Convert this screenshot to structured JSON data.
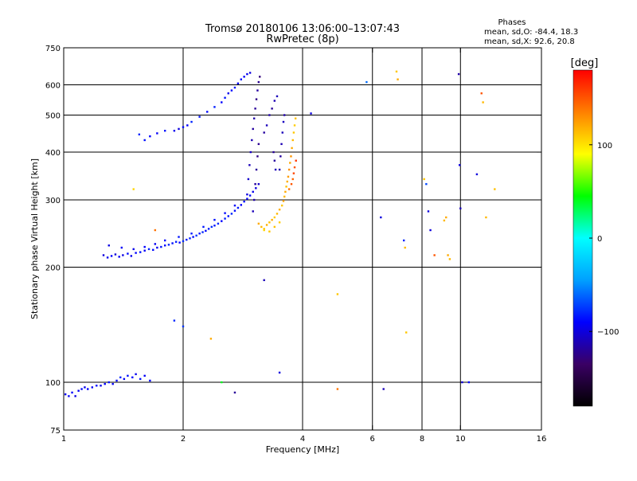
{
  "chart_data": {
    "type": "scatter",
    "title": "Tromsø 20180106 13:06:00–13:07:43",
    "subtitle": "RwPretec (8p)",
    "xlabel": "Frequency [MHz]",
    "ylabel": "Stationary phase Virtual Height [km]",
    "x_scale": "log",
    "y_scale": "log",
    "xlim": [
      1,
      16
    ],
    "ylim": [
      75,
      750
    ],
    "x_ticks": [
      {
        "value": 1,
        "label": "1"
      },
      {
        "value": 2,
        "label": "2"
      },
      {
        "value": 4,
        "label": "4"
      },
      {
        "value": 6,
        "label": "6"
      },
      {
        "value": 8,
        "label": "8"
      },
      {
        "value": 10,
        "label": "10"
      },
      {
        "value": 16,
        "label": "16"
      }
    ],
    "x_gridlines": [
      2,
      4,
      6,
      8,
      10
    ],
    "y_ticks": [
      {
        "value": 75,
        "label": "75"
      },
      {
        "value": 100,
        "label": "100"
      },
      {
        "value": 200,
        "label": "200"
      },
      {
        "value": 300,
        "label": "300"
      },
      {
        "value": 400,
        "label": "400"
      },
      {
        "value": 500,
        "label": "500"
      },
      {
        "value": 600,
        "label": "600"
      },
      {
        "value": 750,
        "label": "750"
      }
    ],
    "y_gridlines": [
      100,
      200,
      300,
      400,
      500,
      600
    ],
    "grid": true,
    "stats": {
      "heading": "Phases",
      "line_o": "mean, sd,O: -84.4, 18.3",
      "line_x": "mean, sd,X:  92.6, 20.8"
    },
    "colorbar": {
      "label": "[deg]",
      "range": [
        -180,
        180
      ],
      "ticks": [
        {
          "value": 100,
          "label": "100"
        },
        {
          "value": 0,
          "label": "0"
        },
        {
          "value": -100,
          "label": "−100"
        }
      ],
      "stops": [
        "#000000",
        "#3a0064",
        "#0000ff",
        "#00a0ff",
        "#00ffff",
        "#00ff00",
        "#ffff00",
        "#ff8000",
        "#ff0000"
      ]
    },
    "series": [
      {
        "points": [
          [
            1.01,
            93,
            -95
          ],
          [
            1.03,
            92,
            -92
          ],
          [
            1.05,
            94,
            -90
          ],
          [
            1.07,
            92,
            -98
          ],
          [
            1.09,
            95,
            -93
          ],
          [
            1.11,
            96,
            -88
          ],
          [
            1.13,
            97,
            -95
          ],
          [
            1.15,
            96,
            -90
          ],
          [
            1.18,
            97,
            -92
          ],
          [
            1.21,
            98,
            -87
          ],
          [
            1.24,
            98,
            -95
          ],
          [
            1.27,
            99,
            -90
          ],
          [
            1.3,
            100,
            -85
          ],
          [
            1.33,
            99,
            -93
          ],
          [
            1.36,
            101,
            -88
          ],
          [
            1.39,
            103,
            -80
          ],
          [
            1.42,
            102,
            -92
          ],
          [
            1.45,
            104,
            -86
          ],
          [
            1.49,
            103,
            -90
          ],
          [
            1.52,
            105,
            -95
          ],
          [
            1.56,
            102,
            -85
          ],
          [
            1.6,
            104,
            -92
          ],
          [
            1.65,
            101,
            -88
          ],
          [
            1.26,
            215,
            -100
          ],
          [
            1.29,
            212,
            -95
          ],
          [
            1.32,
            214,
            -90
          ],
          [
            1.35,
            216,
            -102
          ],
          [
            1.38,
            213,
            -92
          ],
          [
            1.41,
            215,
            -98
          ],
          [
            1.45,
            217,
            -88
          ],
          [
            1.48,
            214,
            -95
          ],
          [
            1.52,
            218,
            -90
          ],
          [
            1.56,
            219,
            -85
          ],
          [
            1.6,
            221,
            -92
          ],
          [
            1.64,
            223,
            -80
          ],
          [
            1.68,
            222,
            -88
          ],
          [
            1.72,
            225,
            -95
          ],
          [
            1.76,
            226,
            -85
          ],
          [
            1.8,
            228,
            -90
          ],
          [
            1.84,
            229,
            -80
          ],
          [
            1.88,
            231,
            -86
          ],
          [
            1.92,
            233,
            -82
          ],
          [
            1.96,
            232,
            -90
          ],
          [
            2.0,
            234,
            -78
          ],
          [
            2.04,
            236,
            -85
          ],
          [
            2.08,
            238,
            -80
          ],
          [
            2.12,
            240,
            -88
          ],
          [
            2.16,
            242,
            -75
          ],
          [
            2.2,
            245,
            -85
          ],
          [
            2.24,
            247,
            -80
          ],
          [
            2.28,
            249,
            -88
          ],
          [
            2.32,
            252,
            -82
          ],
          [
            2.36,
            255,
            -78
          ],
          [
            2.4,
            257,
            -85
          ],
          [
            2.45,
            260,
            -80
          ],
          [
            2.5,
            264,
            -90
          ],
          [
            2.55,
            268,
            -82
          ],
          [
            2.6,
            272,
            -86
          ],
          [
            2.65,
            276,
            -80
          ],
          [
            2.7,
            281,
            -88
          ],
          [
            2.75,
            286,
            -84
          ],
          [
            2.8,
            291,
            -90
          ],
          [
            2.85,
            297,
            -86
          ],
          [
            2.9,
            302,
            -92
          ],
          [
            2.95,
            308,
            -88
          ],
          [
            3.0,
            315,
            -95
          ],
          [
            3.05,
            322,
            -100
          ],
          [
            3.1,
            330,
            -105
          ],
          [
            1.3,
            228,
            -98
          ],
          [
            1.4,
            225,
            -92
          ],
          [
            1.5,
            223,
            -96
          ],
          [
            1.6,
            226,
            -90
          ],
          [
            1.7,
            230,
            -94
          ],
          [
            1.8,
            235,
            -90
          ],
          [
            1.95,
            240,
            -85
          ],
          [
            2.1,
            245,
            -82
          ],
          [
            2.25,
            255,
            -84
          ],
          [
            2.4,
            266,
            -86
          ],
          [
            2.55,
            277,
            -88
          ],
          [
            2.7,
            290,
            -92
          ],
          [
            1.55,
            445,
            -80
          ],
          [
            1.6,
            430,
            -86
          ],
          [
            1.65,
            440,
            -90
          ],
          [
            1.72,
            448,
            -92
          ],
          [
            1.8,
            455,
            -85
          ],
          [
            1.9,
            455,
            -95
          ],
          [
            1.95,
            460,
            -100
          ],
          [
            2.0,
            465,
            -88
          ],
          [
            2.05,
            470,
            -92
          ],
          [
            2.1,
            480,
            -80
          ],
          [
            2.2,
            495,
            -85
          ],
          [
            2.3,
            510,
            -88
          ],
          [
            2.4,
            525,
            -82
          ],
          [
            2.5,
            540,
            -90
          ],
          [
            2.55,
            555,
            -85
          ],
          [
            2.6,
            570,
            -95
          ],
          [
            2.65,
            580,
            -88
          ],
          [
            2.7,
            590,
            -84
          ],
          [
            2.75,
            605,
            -90
          ],
          [
            2.8,
            620,
            -86
          ],
          [
            2.85,
            630,
            -92
          ],
          [
            2.9,
            640,
            -95
          ],
          [
            2.95,
            645,
            -100
          ],
          [
            2.9,
            310,
            -100
          ],
          [
            2.92,
            340,
            -105
          ],
          [
            2.94,
            370,
            -110
          ],
          [
            2.96,
            400,
            -108
          ],
          [
            2.98,
            430,
            -112
          ],
          [
            3.0,
            460,
            -118
          ],
          [
            3.02,
            490,
            -115
          ],
          [
            3.04,
            520,
            -120
          ],
          [
            3.06,
            550,
            -125
          ],
          [
            3.08,
            580,
            -118
          ],
          [
            3.1,
            610,
            -122
          ],
          [
            3.12,
            630,
            -128
          ],
          [
            3.0,
            280,
            -110
          ],
          [
            3.02,
            300,
            -115
          ],
          [
            3.04,
            330,
            -118
          ],
          [
            3.06,
            360,
            -120
          ],
          [
            3.08,
            390,
            -125
          ],
          [
            3.1,
            420,
            -122
          ],
          [
            3.2,
            450,
            -118
          ],
          [
            3.25,
            470,
            -110
          ],
          [
            3.3,
            500,
            -115
          ],
          [
            3.35,
            520,
            -120
          ],
          [
            3.4,
            545,
            -112
          ],
          [
            3.45,
            560,
            -110
          ],
          [
            3.5,
            360,
            -115
          ],
          [
            3.52,
            390,
            -118
          ],
          [
            3.54,
            420,
            -112
          ],
          [
            3.56,
            450,
            -110
          ],
          [
            3.58,
            480,
            -108
          ],
          [
            3.6,
            500,
            -115
          ],
          [
            3.38,
            400,
            -120
          ],
          [
            3.4,
            380,
            -118
          ],
          [
            3.42,
            360,
            -110
          ],
          [
            3.1,
            260,
            120
          ],
          [
            3.15,
            255,
            115
          ],
          [
            3.2,
            252,
            110
          ],
          [
            3.25,
            258,
            118
          ],
          [
            3.3,
            262,
            112
          ],
          [
            3.35,
            266,
            120
          ],
          [
            3.4,
            270,
            108
          ],
          [
            3.45,
            276,
            115
          ],
          [
            3.5,
            283,
            118
          ],
          [
            3.55,
            290,
            110
          ],
          [
            3.58,
            298,
            122
          ],
          [
            3.6,
            306,
            115
          ],
          [
            3.62,
            315,
            120
          ],
          [
            3.64,
            325,
            112
          ],
          [
            3.66,
            335,
            118
          ],
          [
            3.68,
            345,
            125
          ],
          [
            3.7,
            360,
            130
          ],
          [
            3.72,
            375,
            122
          ],
          [
            3.74,
            390,
            128
          ],
          [
            3.76,
            410,
            120
          ],
          [
            3.78,
            430,
            115
          ],
          [
            3.8,
            450,
            110
          ],
          [
            3.82,
            470,
            108
          ],
          [
            3.84,
            490,
            112
          ],
          [
            3.7,
            320,
            140
          ],
          [
            3.75,
            330,
            150
          ],
          [
            3.78,
            340,
            145
          ],
          [
            3.8,
            352,
            155
          ],
          [
            3.82,
            365,
            150
          ],
          [
            3.85,
            380,
            160
          ],
          [
            3.2,
            250,
            105
          ],
          [
            3.3,
            248,
            110
          ],
          [
            3.4,
            255,
            112
          ],
          [
            3.5,
            262,
            108
          ],
          [
            1.9,
            145,
            -80
          ],
          [
            2.0,
            140,
            -75
          ],
          [
            2.35,
            130,
            120
          ],
          [
            2.7,
            94,
            -120
          ],
          [
            3.2,
            185,
            -110
          ],
          [
            3.5,
            106,
            -100
          ],
          [
            4.2,
            505,
            -100
          ],
          [
            1.5,
            320,
            105
          ],
          [
            1.7,
            250,
            140
          ],
          [
            2.5,
            100,
            40
          ],
          [
            4.9,
            170,
            110
          ],
          [
            4.9,
            96,
            140
          ],
          [
            5.8,
            610,
            -60
          ],
          [
            6.3,
            270,
            -100
          ],
          [
            6.4,
            96,
            -110
          ],
          [
            6.9,
            650,
            110
          ],
          [
            6.95,
            620,
            120
          ],
          [
            7.2,
            235,
            -80
          ],
          [
            7.25,
            225,
            115
          ],
          [
            7.3,
            135,
            110
          ],
          [
            8.1,
            340,
            110
          ],
          [
            8.2,
            330,
            -70
          ],
          [
            8.3,
            280,
            -100
          ],
          [
            8.4,
            250,
            -100
          ],
          [
            8.6,
            215,
            150
          ],
          [
            9.1,
            265,
            115
          ],
          [
            9.2,
            270,
            120
          ],
          [
            9.3,
            215,
            120
          ],
          [
            9.4,
            210,
            115
          ],
          [
            9.9,
            640,
            -115
          ],
          [
            9.95,
            370,
            -100
          ],
          [
            10.0,
            285,
            -110
          ],
          [
            10.1,
            100,
            -100
          ],
          [
            10.5,
            100,
            -90
          ],
          [
            11.0,
            350,
            -100
          ],
          [
            11.3,
            570,
            150
          ],
          [
            11.4,
            540,
            115
          ],
          [
            12.2,
            320,
            112
          ],
          [
            11.6,
            270,
            115
          ]
        ]
      }
    ]
  }
}
